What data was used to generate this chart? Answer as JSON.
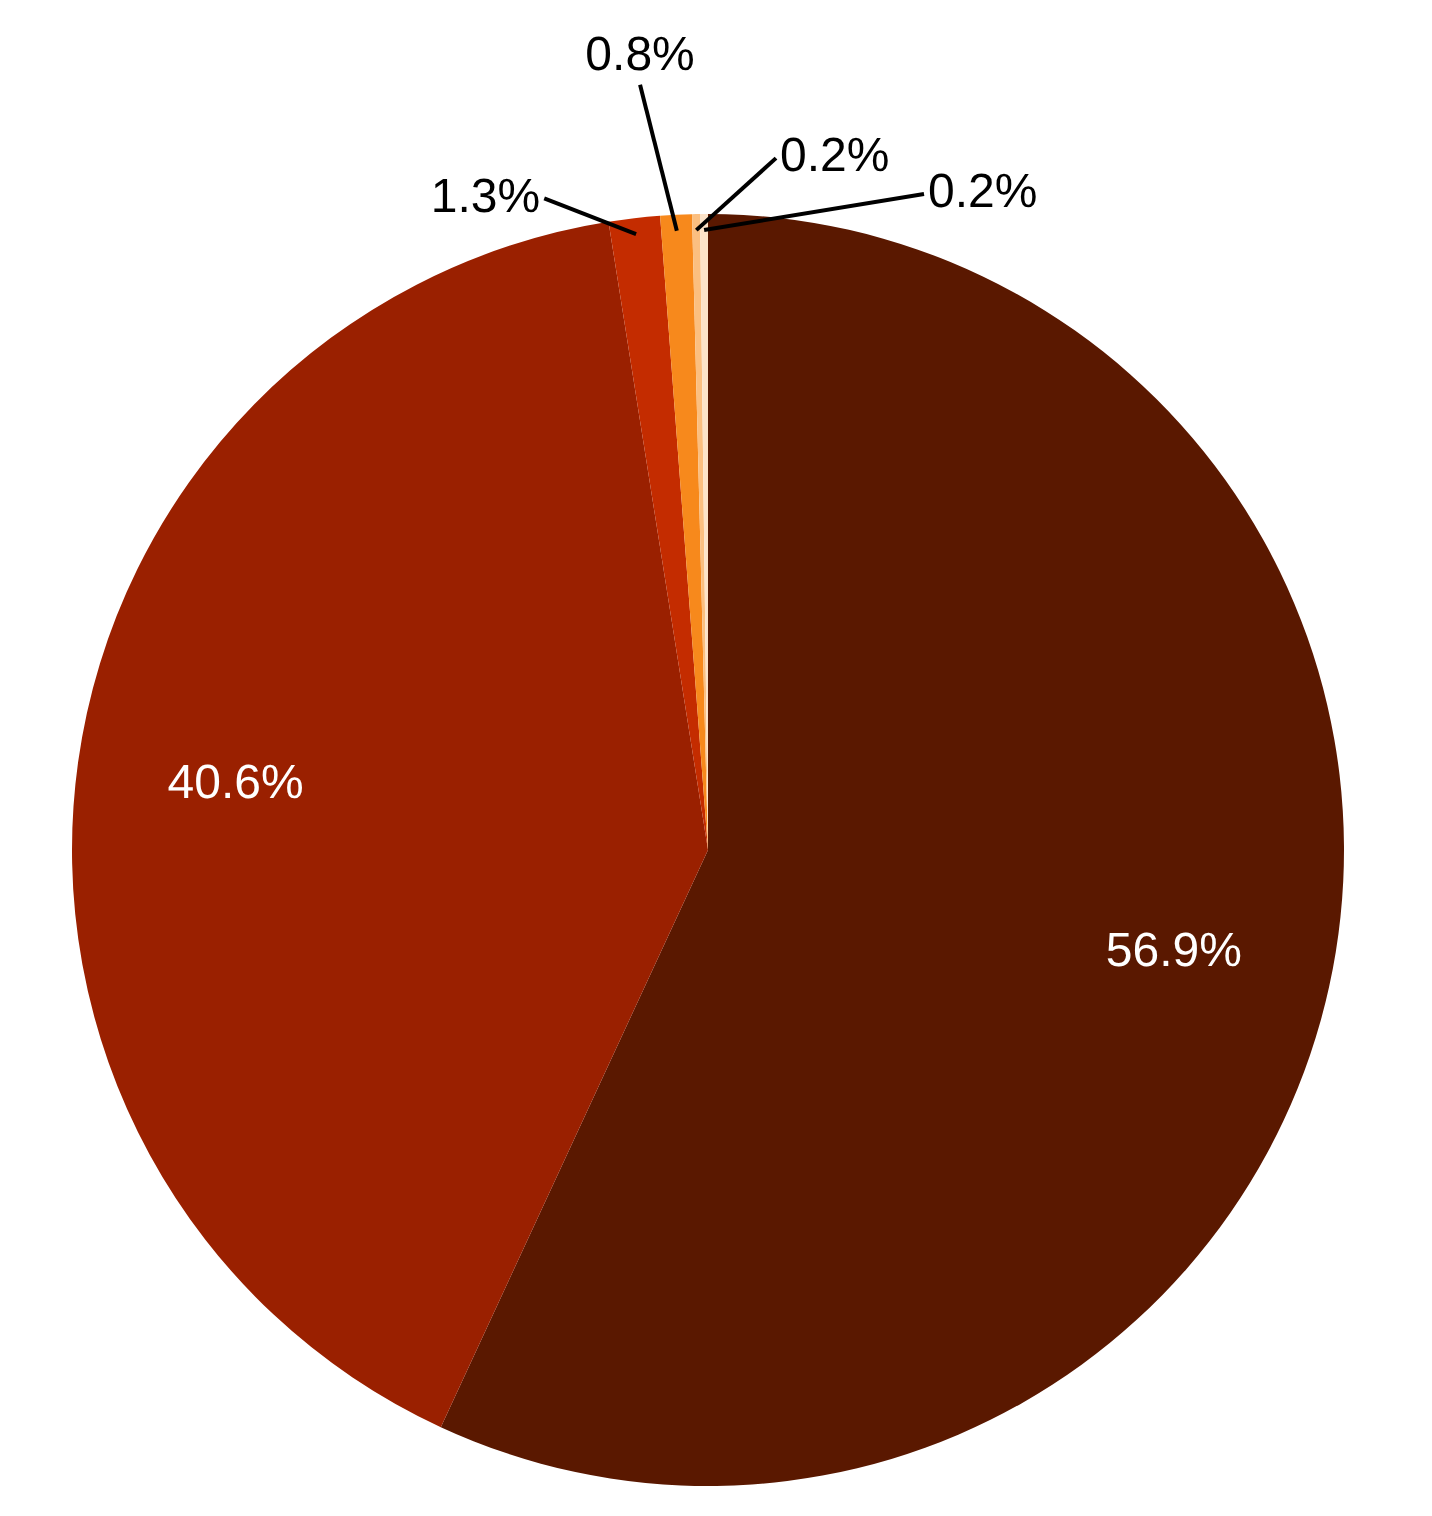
{
  "chart_data": {
    "type": "pie",
    "categories": [
      null,
      null,
      null,
      null,
      null,
      null
    ],
    "values": [
      56.9,
      40.6,
      1.3,
      0.8,
      0.2,
      0.2
    ],
    "colors": [
      "#5a1800",
      "#9a2000",
      "#c42c00",
      "#f7891c",
      "#fbbf80",
      "#fde3c8"
    ],
    "value_labels": [
      "56.9%",
      "40.6%",
      "1.3%",
      "0.8%",
      "0.2%",
      "0.2%"
    ]
  }
}
